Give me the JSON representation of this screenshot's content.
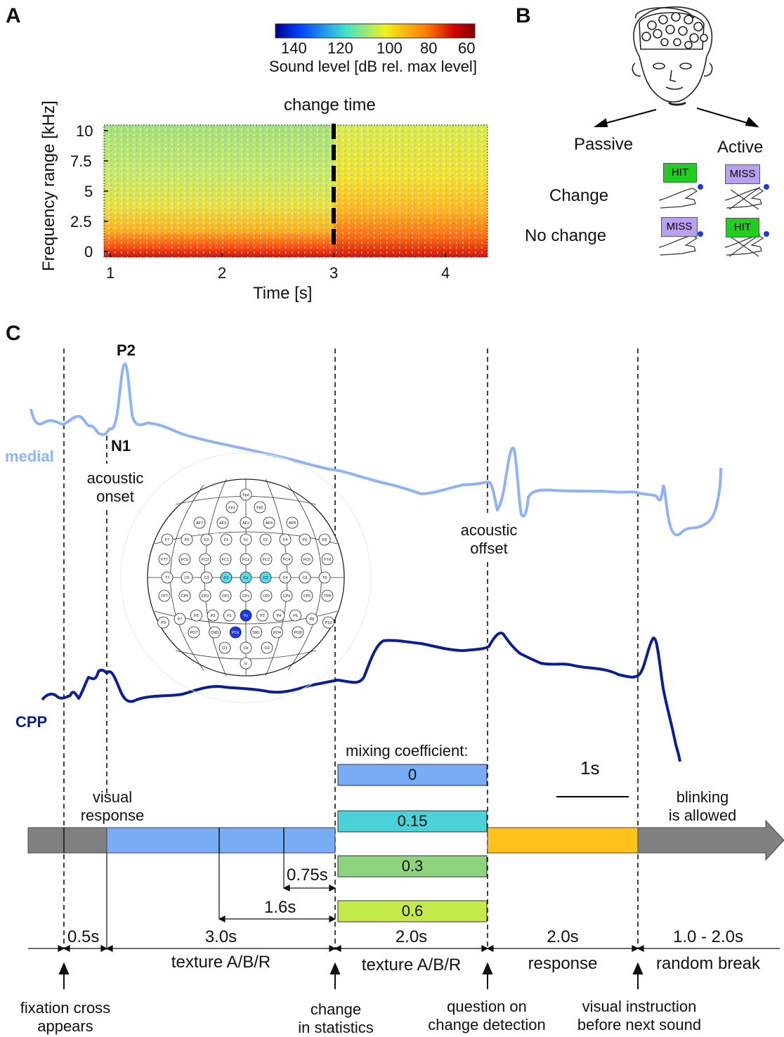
{
  "panel_a": {
    "letter": "A",
    "colorbar_ticks": [
      "140",
      "120",
      "100",
      "80",
      "60"
    ],
    "colorbar_label": "Sound level [dB rel. max level]",
    "change_label": "change time",
    "ylabel": "Frequency range [kHz]",
    "yticks": [
      "10",
      "7.5",
      "5",
      "2.5",
      "0"
    ],
    "xlabel": "Time [s]",
    "xticks": [
      "1",
      "2",
      "3",
      "4"
    ],
    "colors": [
      "#00008f",
      "#0050ff",
      "#40e0d0",
      "#f0f020",
      "#ff8000",
      "#d00000",
      "#800000"
    ]
  },
  "panel_b": {
    "letter": "B",
    "passive": "Passive",
    "active": "Active",
    "change": "Change",
    "no_change": "No change",
    "hit": "HIT",
    "miss": "MISS",
    "hit_color": "#22cc22",
    "miss_color": "#b9a0f0"
  },
  "panel_c": {
    "letter": "C",
    "p2": "P2",
    "n1": "N1",
    "medial": "medial",
    "cpp": "CPP",
    "medial_color": "#8fb3f5",
    "cpp_color": "#0a1f96",
    "acoustic_onset": "acoustic\nonset",
    "acoustic_offset": "acoustic\noffset",
    "visual_response": "visual\nresponse",
    "blinking": "blinking\nis allowed",
    "mixing_title": "mixing coefficient:",
    "mixing_values": [
      "0",
      "0.15",
      "0.3",
      "0.6"
    ],
    "mixing_colors": [
      "#78acf5",
      "#4ad2d8",
      "#8ed37d",
      "#c3ea4a"
    ],
    "scale_bar": "1s",
    "interval_075": "0.75s",
    "interval_16": "1.6s",
    "durations": [
      "0.5s",
      "3.0s",
      "2.0s",
      "2.0s",
      "1.0 - 2.0s"
    ],
    "phases": [
      "texture A/B/R",
      "texture A/B/R",
      "response",
      "random break"
    ],
    "events": [
      "fixation cross\nappears",
      "change\nin statistics",
      "question on\nchange detection",
      "visual instruction\nbefore next sound"
    ],
    "timeline_colors": {
      "gray": "#808080",
      "blue": "#78acf5",
      "orange": "#ffc21a"
    },
    "electrodes": [
      [
        "Fpz"
      ],
      [
        "Fp1",
        "Fp2"
      ],
      [
        "AF7",
        "AF3",
        "AFz",
        "AF4",
        "AF8"
      ],
      [
        "F7",
        "F5",
        "F3",
        "F1",
        "Fz",
        "F2",
        "F4",
        "F6",
        "F8"
      ],
      [
        "FT7",
        "FC5",
        "FC3",
        "FC1",
        "FCz",
        "FC2",
        "FC4",
        "FC6",
        "FT8"
      ],
      [
        "T7",
        "C5",
        "C3",
        "C1",
        "Cz",
        "C2",
        "C4",
        "C6",
        "T8"
      ],
      [
        "TP7",
        "CP5",
        "CP3",
        "CP1",
        "CPz",
        "CP2",
        "CP4",
        "CP6",
        "TP8"
      ],
      [
        "P9",
        "P7",
        "P5",
        "P3",
        "P1",
        "Pz",
        "P2",
        "P4",
        "P6",
        "P8",
        "P10"
      ],
      [
        "PO7",
        "CMS",
        "POz",
        "DRL",
        "PO4",
        "PO8"
      ],
      [
        "O1",
        "Oz",
        "O2"
      ],
      [
        "Iz"
      ]
    ]
  }
}
